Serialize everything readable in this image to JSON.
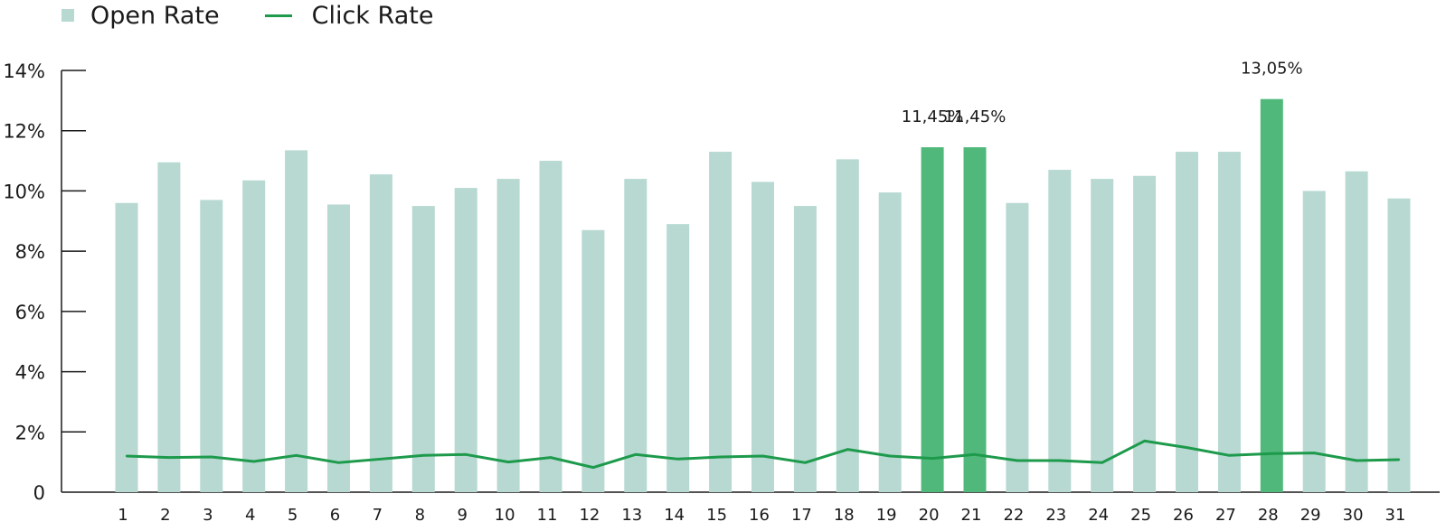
{
  "chart_data": {
    "type": "bar",
    "legend": {
      "placement": "top-left",
      "entries": [
        {
          "label": "Open Rate",
          "kind": "bar",
          "color": "#b7d9d2"
        },
        {
          "label": "Click Rate",
          "kind": "line",
          "color": "#1d9a4b"
        }
      ]
    },
    "categories": [
      "1",
      "2",
      "3",
      "4",
      "5",
      "6",
      "7",
      "8",
      "9",
      "10",
      "11",
      "12",
      "13",
      "14",
      "15",
      "16",
      "17",
      "18",
      "19",
      "20",
      "21",
      "22",
      "23",
      "24",
      "25",
      "26",
      "27",
      "28",
      "29",
      "30",
      "31"
    ],
    "series": [
      {
        "name": "Open Rate",
        "type": "bar",
        "color": "#b7d9d2",
        "highlight_color": "#4fb87a",
        "highlighted_categories": [
          "20",
          "21",
          "28"
        ],
        "values": [
          9.6,
          10.95,
          9.7,
          10.35,
          11.35,
          9.55,
          10.55,
          9.5,
          10.1,
          10.4,
          11.0,
          8.7,
          10.4,
          8.9,
          11.3,
          10.3,
          9.5,
          11.05,
          9.95,
          11.45,
          11.45,
          9.6,
          10.7,
          10.4,
          10.5,
          11.3,
          11.3,
          13.05,
          10.0,
          10.65,
          9.75
        ]
      },
      {
        "name": "Click Rate",
        "type": "line",
        "color": "#1d9a4b",
        "values": [
          1.2,
          1.15,
          1.17,
          1.02,
          1.22,
          0.98,
          1.1,
          1.22,
          1.25,
          1.0,
          1.15,
          0.82,
          1.25,
          1.1,
          1.17,
          1.2,
          0.98,
          1.42,
          1.2,
          1.12,
          1.25,
          1.05,
          1.05,
          0.98,
          1.7,
          1.48,
          1.22,
          1.28,
          1.3,
          1.05,
          1.08
        ]
      }
    ],
    "data_labels": [
      {
        "category": "20",
        "text": "11,45%"
      },
      {
        "category": "21",
        "text": "11,45%"
      },
      {
        "category": "28",
        "text": "13,05%"
      }
    ],
    "y_ticks": [
      {
        "value": 0,
        "label": "0"
      },
      {
        "value": 2,
        "label": "2%"
      },
      {
        "value": 4,
        "label": "4%"
      },
      {
        "value": 6,
        "label": "6%"
      },
      {
        "value": 8,
        "label": "8%"
      },
      {
        "value": 10,
        "label": "10%"
      },
      {
        "value": 12,
        "label": "12%"
      },
      {
        "value": 14,
        "label": "14%"
      }
    ],
    "ylim": [
      0,
      14
    ],
    "grid": false,
    "title": "",
    "xlabel": "",
    "ylabel": ""
  }
}
